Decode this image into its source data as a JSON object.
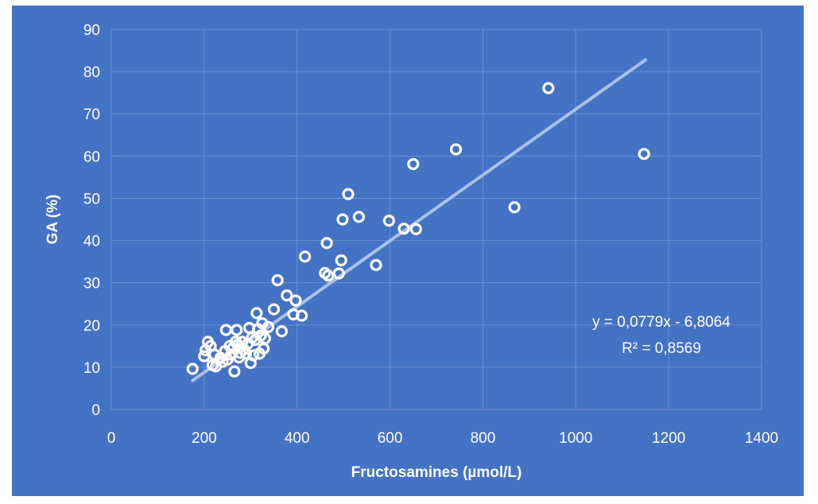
{
  "chart_data": {
    "type": "scatter",
    "title": "",
    "xlabel": "Fructosamines (µmol/L)",
    "ylabel": "GA (%)",
    "xlim": [
      0,
      1400
    ],
    "ylim": [
      0,
      90
    ],
    "x_ticks": [
      "0",
      "200",
      "400",
      "600",
      "800",
      "1000",
      "1200",
      "1400"
    ],
    "y_ticks": [
      "0",
      "10",
      "20",
      "30",
      "40",
      "50",
      "60",
      "70",
      "80",
      "90"
    ],
    "grid": true,
    "background_color": "#4472c4",
    "marker_color": "#ffffff",
    "trendline_color": "#a9c1e8",
    "trendline": {
      "type": "linear",
      "slope": 0.0779,
      "intercept": -6.8064,
      "x_range": [
        175,
        1150
      ],
      "equation_label": "y = 0,0779x - 6,8064",
      "r2_label": "R² = 0,8569"
    },
    "series": [
      {
        "points": [
          [
            175,
            9.6
          ],
          [
            200,
            12.6
          ],
          [
            203,
            14.0
          ],
          [
            208,
            16.0
          ],
          [
            214,
            15.0
          ],
          [
            218,
            10.5
          ],
          [
            222,
            13.0
          ],
          [
            225,
            10.2
          ],
          [
            235,
            12.2
          ],
          [
            240,
            11.3
          ],
          [
            245,
            13.8
          ],
          [
            247,
            18.8
          ],
          [
            250,
            11.8
          ],
          [
            255,
            15.0
          ],
          [
            258,
            13.0
          ],
          [
            262,
            14.5
          ],
          [
            265,
            9.0
          ],
          [
            268,
            16.0
          ],
          [
            270,
            18.8
          ],
          [
            272,
            15.3
          ],
          [
            275,
            12.3
          ],
          [
            278,
            13.4
          ],
          [
            282,
            16.0
          ],
          [
            285,
            14.2
          ],
          [
            290,
            13.2
          ],
          [
            294,
            15.6
          ],
          [
            297,
            19.3
          ],
          [
            300,
            11.0
          ],
          [
            303,
            17.0
          ],
          [
            306,
            12.8
          ],
          [
            310,
            16.5
          ],
          [
            313,
            22.8
          ],
          [
            316,
            19.0
          ],
          [
            319,
            13.2
          ],
          [
            322,
            17.5
          ],
          [
            325,
            20.4
          ],
          [
            328,
            14.4
          ],
          [
            331,
            16.8
          ],
          [
            338,
            19.5
          ],
          [
            350,
            23.7
          ],
          [
            358,
            30.6
          ],
          [
            367,
            18.5
          ],
          [
            378,
            27.0
          ],
          [
            392,
            22.5
          ],
          [
            397,
            25.8
          ],
          [
            410,
            22.2
          ],
          [
            417,
            36.2
          ],
          [
            460,
            32.3
          ],
          [
            464,
            39.4
          ],
          [
            467,
            31.7
          ],
          [
            490,
            32.2
          ],
          [
            495,
            35.3
          ],
          [
            498,
            45.0
          ],
          [
            510,
            51.0
          ],
          [
            533,
            45.6
          ],
          [
            570,
            34.2
          ],
          [
            598,
            44.7
          ],
          [
            630,
            42.8
          ],
          [
            650,
            58.1
          ],
          [
            656,
            42.7
          ],
          [
            742,
            61.6
          ],
          [
            868,
            47.9
          ],
          [
            941,
            76.1
          ],
          [
            1147,
            60.5
          ]
        ]
      }
    ]
  }
}
